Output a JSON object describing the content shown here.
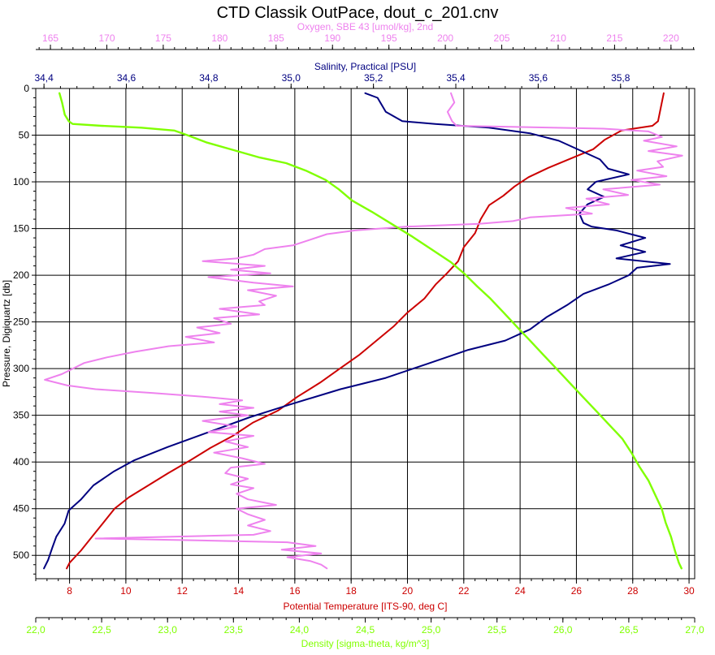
{
  "chart_data": {
    "type": "line",
    "title": "CTD Classik OutPace, dout_c_201.cnv",
    "y_axis": {
      "label": "Pressure, Digiquartz [db]",
      "range": [
        0,
        525
      ],
      "inverted": true,
      "ticks": [
        "0",
        "50",
        "100",
        "150",
        "200",
        "250",
        "300",
        "350",
        "400",
        "450",
        "500"
      ],
      "tick_values": [
        0,
        50,
        100,
        150,
        200,
        250,
        300,
        350,
        400,
        450,
        500
      ]
    },
    "axes": [
      {
        "key": "oxygen",
        "label": "Oxygen, SBE 43 [umol/kg], 2nd",
        "color": "#ee82ee",
        "position": "top-outer",
        "range": [
          163.7,
          222.1
        ],
        "ticks": [
          "165",
          "170",
          "175",
          "180",
          "185",
          "190",
          "195",
          "200",
          "205",
          "210",
          "215",
          "220"
        ],
        "tick_values": [
          165,
          170,
          175,
          180,
          185,
          190,
          195,
          200,
          205,
          210,
          215,
          220
        ]
      },
      {
        "key": "salinity",
        "label": "Salinity, Practical [PSU]",
        "color": "#000080",
        "position": "top-inner",
        "range": [
          34.38,
          35.98
        ],
        "ticks": [
          "34,4",
          "34,6",
          "34,8",
          "35,0",
          "35,2",
          "35,4",
          "35,6",
          "35,8"
        ],
        "tick_values": [
          34.4,
          34.6,
          34.8,
          35.0,
          35.2,
          35.4,
          35.6,
          35.8
        ]
      },
      {
        "key": "temperature",
        "label": "Potential Temperature [ITS-90, deg C]",
        "color": "#cc0000",
        "position": "bottom-inner",
        "range": [
          6.8,
          30.2
        ],
        "ticks": [
          "8",
          "10",
          "12",
          "14",
          "16",
          "18",
          "20",
          "22",
          "24",
          "26",
          "28",
          "30"
        ],
        "tick_values": [
          8,
          10,
          12,
          14,
          16,
          18,
          20,
          22,
          24,
          26,
          28,
          30
        ]
      },
      {
        "key": "density",
        "label": "Density [sigma-theta, kg/m^3]",
        "color": "#80ff00",
        "position": "bottom-outer",
        "range": [
          22.0,
          27.0
        ],
        "ticks": [
          "22,0",
          "22,5",
          "23,0",
          "23,5",
          "24,0",
          "24,5",
          "25,0",
          "25,5",
          "26,0",
          "26,5",
          "27,0"
        ],
        "tick_values": [
          22.0,
          22.5,
          23.0,
          23.5,
          24.0,
          24.5,
          25.0,
          25.5,
          26.0,
          26.5,
          27.0
        ]
      }
    ],
    "grid": true,
    "series": [
      {
        "axis": "temperature",
        "color": "#cc0000",
        "points": [
          [
            29.1,
            5
          ],
          [
            29.0,
            20
          ],
          [
            28.9,
            35
          ],
          [
            28.7,
            40
          ],
          [
            27.6,
            45
          ],
          [
            27.0,
            55
          ],
          [
            26.6,
            65
          ],
          [
            25.8,
            75
          ],
          [
            25.0,
            85
          ],
          [
            24.3,
            95
          ],
          [
            23.8,
            105
          ],
          [
            23.4,
            115
          ],
          [
            22.9,
            125
          ],
          [
            22.6,
            140
          ],
          [
            22.4,
            155
          ],
          [
            22.0,
            170
          ],
          [
            21.8,
            185
          ],
          [
            21.4,
            198
          ],
          [
            21.0,
            210
          ],
          [
            20.6,
            225
          ],
          [
            20.0,
            240
          ],
          [
            19.5,
            255
          ],
          [
            18.9,
            270
          ],
          [
            18.3,
            285
          ],
          [
            17.6,
            300
          ],
          [
            16.9,
            315
          ],
          [
            16.1,
            330
          ],
          [
            15.4,
            345
          ],
          [
            14.5,
            358
          ],
          [
            13.8,
            372
          ],
          [
            13.0,
            385
          ],
          [
            12.3,
            398
          ],
          [
            11.5,
            412
          ],
          [
            10.8,
            425
          ],
          [
            10.1,
            438
          ],
          [
            9.6,
            450
          ],
          [
            9.2,
            465
          ],
          [
            8.8,
            480
          ],
          [
            8.4,
            495
          ],
          [
            8.0,
            508
          ],
          [
            7.9,
            514
          ]
        ]
      },
      {
        "axis": "salinity",
        "color": "#000080",
        "points": [
          [
            35.18,
            5
          ],
          [
            35.21,
            10
          ],
          [
            35.23,
            25
          ],
          [
            35.27,
            35
          ],
          [
            35.35,
            38
          ],
          [
            35.48,
            42
          ],
          [
            35.58,
            48
          ],
          [
            35.65,
            56
          ],
          [
            35.7,
            66
          ],
          [
            35.75,
            76
          ],
          [
            35.77,
            86
          ],
          [
            35.82,
            92
          ],
          [
            35.74,
            100
          ],
          [
            35.72,
            108
          ],
          [
            35.76,
            116
          ],
          [
            35.72,
            124
          ],
          [
            35.7,
            134
          ],
          [
            35.71,
            144
          ],
          [
            35.73,
            148
          ],
          [
            35.79,
            152
          ],
          [
            35.86,
            160
          ],
          [
            35.8,
            168
          ],
          [
            35.86,
            175
          ],
          [
            35.79,
            182
          ],
          [
            35.92,
            188
          ],
          [
            35.84,
            192
          ],
          [
            35.82,
            200
          ],
          [
            35.77,
            210
          ],
          [
            35.71,
            220
          ],
          [
            35.67,
            232
          ],
          [
            35.62,
            245
          ],
          [
            35.58,
            258
          ],
          [
            35.52,
            270
          ],
          [
            35.43,
            280
          ],
          [
            35.33,
            295
          ],
          [
            35.23,
            310
          ],
          [
            35.12,
            322
          ],
          [
            35.0,
            338
          ],
          [
            34.9,
            352
          ],
          [
            34.8,
            368
          ],
          [
            34.7,
            384
          ],
          [
            34.62,
            398
          ],
          [
            34.57,
            410
          ],
          [
            34.52,
            425
          ],
          [
            34.49,
            440
          ],
          [
            34.46,
            452
          ],
          [
            34.45,
            466
          ],
          [
            34.43,
            480
          ],
          [
            34.42,
            492
          ],
          [
            34.41,
            505
          ],
          [
            34.4,
            514
          ]
        ]
      },
      {
        "axis": "oxygen",
        "color": "#ee82ee",
        "points": [
          [
            200.5,
            5
          ],
          [
            200.8,
            15
          ],
          [
            200.2,
            25
          ],
          [
            200.6,
            35
          ],
          [
            201.0,
            40
          ],
          [
            214.0,
            43
          ],
          [
            218.0,
            46
          ],
          [
            219.2,
            52
          ],
          [
            217.6,
            56
          ],
          [
            220.5,
            62
          ],
          [
            218.0,
            67
          ],
          [
            221.0,
            72
          ],
          [
            218.8,
            78
          ],
          [
            219.3,
            84
          ],
          [
            217.0,
            88
          ],
          [
            219.6,
            94
          ],
          [
            216.5,
            98
          ],
          [
            219.0,
            103
          ],
          [
            214.0,
            108
          ],
          [
            216.2,
            114
          ],
          [
            212.5,
            118
          ],
          [
            214.5,
            124
          ],
          [
            210.7,
            128
          ],
          [
            213.0,
            134
          ],
          [
            207.5,
            138
          ],
          [
            206.0,
            142
          ],
          [
            203.0,
            145
          ],
          [
            196.5,
            148
          ],
          [
            192.0,
            152
          ],
          [
            189.5,
            156
          ],
          [
            188.0,
            162
          ],
          [
            186.5,
            168
          ],
          [
            184.0,
            172
          ],
          [
            183.0,
            178
          ],
          [
            181.5,
            182
          ],
          [
            178.5,
            185
          ],
          [
            184.0,
            190
          ],
          [
            181.0,
            194
          ],
          [
            184.5,
            198
          ],
          [
            179.0,
            202
          ],
          [
            183.0,
            208
          ],
          [
            186.5,
            212
          ],
          [
            182.5,
            216
          ],
          [
            185.0,
            222
          ],
          [
            183.5,
            228
          ],
          [
            184.0,
            232
          ],
          [
            180.0,
            236
          ],
          [
            183.5,
            242
          ],
          [
            179.5,
            246
          ],
          [
            181.0,
            252
          ],
          [
            178.0,
            256
          ],
          [
            180.0,
            262
          ],
          [
            177.0,
            266
          ],
          [
            179.5,
            272
          ],
          [
            175.5,
            276
          ],
          [
            172.5,
            282
          ],
          [
            170.0,
            288
          ],
          [
            168.0,
            294
          ],
          [
            167.0,
            300
          ],
          [
            166.0,
            306
          ],
          [
            164.5,
            312
          ],
          [
            166.5,
            318
          ],
          [
            169.0,
            322
          ],
          [
            174.0,
            326
          ],
          [
            178.5,
            330
          ],
          [
            182.0,
            334
          ],
          [
            180.0,
            338
          ],
          [
            183.0,
            342
          ],
          [
            180.0,
            346
          ],
          [
            182.5,
            350
          ],
          [
            178.5,
            356
          ],
          [
            181.5,
            362
          ],
          [
            179.0,
            368
          ],
          [
            183.0,
            372
          ],
          [
            180.5,
            378
          ],
          [
            182.5,
            384
          ],
          [
            179.5,
            390
          ],
          [
            182.0,
            396
          ],
          [
            184.0,
            402
          ],
          [
            181.0,
            406
          ],
          [
            180.5,
            412
          ],
          [
            182.5,
            418
          ],
          [
            181.0,
            424
          ],
          [
            183.0,
            428
          ],
          [
            181.5,
            434
          ],
          [
            182.5,
            440
          ],
          [
            185.0,
            446
          ],
          [
            181.5,
            450
          ],
          [
            182.5,
            456
          ],
          [
            184.0,
            462
          ],
          [
            182.5,
            468
          ],
          [
            184.5,
            474
          ],
          [
            183.0,
            478
          ],
          [
            169.0,
            482
          ],
          [
            178.0,
            484
          ],
          [
            186.0,
            486
          ],
          [
            188.5,
            490
          ],
          [
            185.5,
            494
          ],
          [
            189.0,
            498
          ],
          [
            186.0,
            502
          ],
          [
            188.0,
            506
          ],
          [
            189.0,
            510
          ],
          [
            189.5,
            514
          ]
        ]
      },
      {
        "axis": "density",
        "color": "#80ff00",
        "points": [
          [
            22.18,
            5
          ],
          [
            22.2,
            15
          ],
          [
            22.22,
            28
          ],
          [
            22.25,
            35
          ],
          [
            22.28,
            38
          ],
          [
            22.5,
            40
          ],
          [
            22.8,
            42
          ],
          [
            23.05,
            45
          ],
          [
            23.15,
            50
          ],
          [
            23.3,
            58
          ],
          [
            23.5,
            66
          ],
          [
            23.7,
            74
          ],
          [
            23.9,
            80
          ],
          [
            24.05,
            88
          ],
          [
            24.2,
            98
          ],
          [
            24.3,
            108
          ],
          [
            24.4,
            120
          ],
          [
            24.55,
            132
          ],
          [
            24.7,
            145
          ],
          [
            24.85,
            158
          ],
          [
            25.0,
            172
          ],
          [
            25.15,
            186
          ],
          [
            25.25,
            198
          ],
          [
            25.35,
            212
          ],
          [
            25.45,
            225
          ],
          [
            25.55,
            240
          ],
          [
            25.65,
            255
          ],
          [
            25.75,
            270
          ],
          [
            25.85,
            285
          ],
          [
            25.95,
            300
          ],
          [
            26.05,
            315
          ],
          [
            26.15,
            330
          ],
          [
            26.25,
            345
          ],
          [
            26.35,
            360
          ],
          [
            26.45,
            375
          ],
          [
            26.52,
            390
          ],
          [
            26.58,
            405
          ],
          [
            26.65,
            420
          ],
          [
            26.7,
            435
          ],
          [
            26.75,
            450
          ],
          [
            26.78,
            465
          ],
          [
            26.82,
            480
          ],
          [
            26.85,
            495
          ],
          [
            26.88,
            508
          ],
          [
            26.9,
            514
          ]
        ]
      }
    ]
  }
}
